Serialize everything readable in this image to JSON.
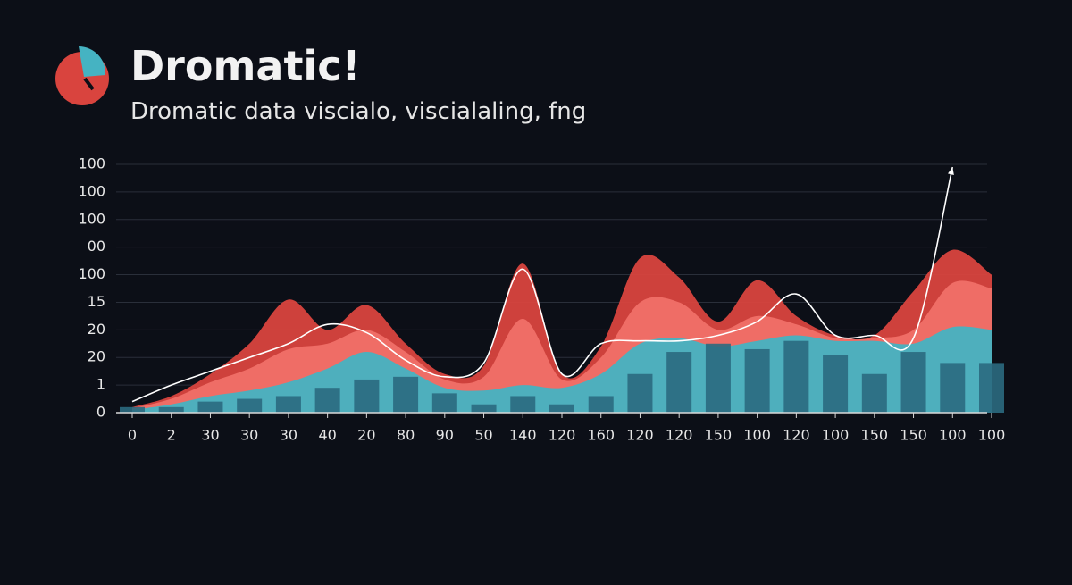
{
  "chart_data": {
    "type": "stacked-area-bar",
    "title": "Dromatic!",
    "subtitle": "Dromatic data viscialo, viscialaling, fng",
    "categories": [
      "0",
      "2",
      "30",
      "30",
      "30",
      "40",
      "20",
      "80",
      "90",
      "50",
      "140",
      "120",
      "160",
      "120",
      "120",
      "150",
      "100",
      "120",
      "100",
      "150",
      "150",
      "100",
      "100"
    ],
    "ylim": [
      0,
      9
    ],
    "yticks": [
      0,
      1,
      {
        "value": 2,
        "label": "20"
      },
      {
        "value": 3,
        "label": "20"
      },
      {
        "value": 4,
        "label": "15"
      },
      {
        "value": 5,
        "label": "100"
      },
      {
        "value": 6,
        "label": "00"
      },
      {
        "value": 7,
        "label": "100"
      },
      {
        "value": 8,
        "label": "100"
      },
      {
        "value": 9,
        "label": "100"
      }
    ],
    "grid": true,
    "bars": {
      "color": "#2b6a80",
      "values": [
        0.2,
        0.2,
        0.4,
        0.5,
        0.6,
        0.9,
        1.2,
        1.3,
        0.7,
        0.3,
        0.6,
        0.3,
        0.6,
        1.4,
        2.2,
        2.5,
        2.3,
        2.6,
        2.1,
        1.4,
        2.2,
        1.8,
        1.8
      ]
    },
    "series": [
      {
        "color": "#45b3c2",
        "values": [
          0.1,
          0.3,
          0.6,
          0.8,
          1.1,
          1.6,
          2.2,
          1.6,
          0.9,
          0.8,
          1.0,
          0.9,
          1.4,
          2.5,
          2.7,
          2.4,
          2.6,
          2.8,
          2.6,
          2.6,
          2.5,
          3.1,
          3.0
        ]
      },
      {
        "color": "#f07068",
        "values": [
          0.05,
          0.2,
          0.5,
          0.8,
          1.2,
          0.9,
          0.8,
          0.6,
          0.3,
          0.5,
          2.4,
          0.3,
          0.6,
          1.5,
          1.3,
          0.6,
          0.9,
          0.4,
          0.1,
          0.1,
          0.5,
          1.6,
          1.5
        ]
      },
      {
        "color": "#d9443e",
        "values": [
          0.05,
          0.1,
          0.3,
          0.9,
          1.8,
          0.5,
          0.9,
          0.3,
          0.2,
          0.4,
          2.0,
          0.2,
          0.4,
          1.6,
          0.9,
          0.3,
          1.3,
          0.3,
          0.1,
          0.1,
          1.4,
          1.2,
          0.5
        ]
      }
    ],
    "line": {
      "color": "#ffffff",
      "values": [
        0.4,
        1.0,
        1.5,
        2.0,
        2.5,
        3.2,
        2.9,
        1.9,
        1.3,
        1.8,
        5.2,
        1.4,
        2.5,
        2.6,
        2.6,
        2.8,
        3.3,
        4.3,
        2.8,
        2.8,
        2.7,
        8.9,
        null
      ]
    }
  }
}
